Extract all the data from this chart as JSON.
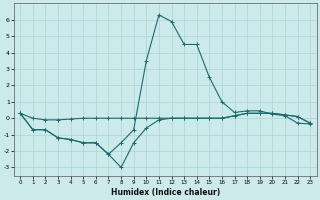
{
  "xlabel": "Humidex (Indice chaleur)",
  "bg_color": "#cceaea",
  "grid_color": "#b0d8d8",
  "line_color": "#1a6b6b",
  "xlim": [
    -0.5,
    23.5
  ],
  "ylim": [
    -3.5,
    7.0
  ],
  "yticks": [
    -3,
    -2,
    -1,
    0,
    1,
    2,
    3,
    4,
    5,
    6
  ],
  "xticks": [
    0,
    1,
    2,
    3,
    4,
    5,
    6,
    7,
    8,
    9,
    10,
    11,
    12,
    13,
    14,
    15,
    16,
    17,
    18,
    19,
    20,
    21,
    22,
    23
  ],
  "line_peak_x": [
    0,
    1,
    2,
    3,
    4,
    5,
    6,
    7,
    8,
    9,
    10,
    11,
    12,
    13,
    14,
    15,
    16,
    17,
    18,
    19,
    20,
    21,
    22,
    23
  ],
  "line_peak_y": [
    0.3,
    -0.7,
    -0.7,
    -1.2,
    -1.3,
    -1.5,
    -1.5,
    -2.2,
    -1.5,
    -0.7,
    3.5,
    6.3,
    5.9,
    4.5,
    4.5,
    2.5,
    1.0,
    0.35,
    0.45,
    0.45,
    0.25,
    0.15,
    -0.3,
    -0.35
  ],
  "line_flat_x": [
    0,
    1,
    2,
    3,
    4,
    5,
    6,
    7,
    8,
    9,
    10,
    11,
    12,
    13,
    14,
    15,
    16,
    17,
    18,
    19,
    20,
    21,
    22,
    23
  ],
  "line_flat_y": [
    0.3,
    0.0,
    -0.1,
    -0.1,
    -0.05,
    0.0,
    0.0,
    0.0,
    0.0,
    0.0,
    0.0,
    0.0,
    0.0,
    0.0,
    0.0,
    0.0,
    0.0,
    0.15,
    0.3,
    0.3,
    0.3,
    0.2,
    0.1,
    -0.3
  ],
  "line_dip_x": [
    0,
    1,
    2,
    3,
    4,
    5,
    6,
    7,
    8,
    9,
    10,
    11,
    12,
    13,
    14,
    15,
    16,
    17,
    18,
    19,
    20,
    21,
    22,
    23
  ],
  "line_dip_y": [
    0.3,
    -0.7,
    -0.7,
    -1.2,
    -1.3,
    -1.5,
    -1.5,
    -2.2,
    -3.0,
    -1.5,
    -0.6,
    -0.1,
    0.0,
    0.0,
    0.0,
    0.0,
    0.0,
    0.15,
    0.3,
    0.3,
    0.3,
    0.2,
    0.1,
    -0.3
  ]
}
